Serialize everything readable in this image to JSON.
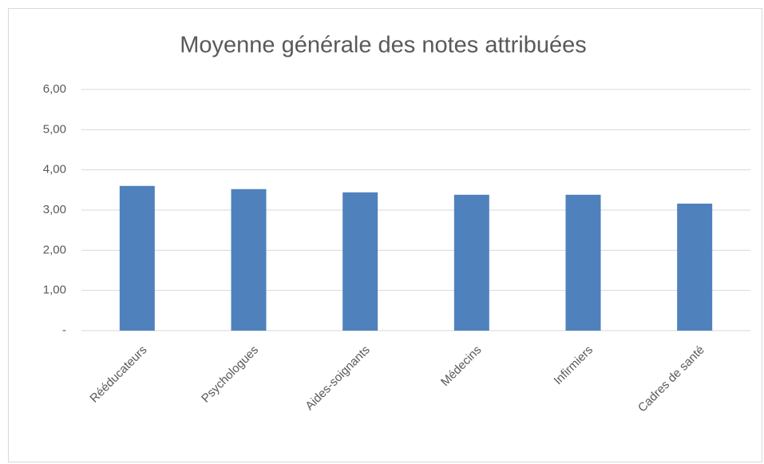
{
  "chart_data": {
    "type": "bar",
    "title": "Moyenne générale des notes attribuées",
    "categories": [
      "Rééducateurs",
      "Psychologues",
      "Aides-soignants",
      "Médecins",
      "Infirmiers",
      "Cadres de santé"
    ],
    "values": [
      3.6,
      3.52,
      3.44,
      3.38,
      3.38,
      3.16
    ],
    "color": "#4f81bd",
    "ylim": [
      0,
      6
    ],
    "yticks": [
      {
        "value": 0,
        "label": "-"
      },
      {
        "value": 1,
        "label": "1,00"
      },
      {
        "value": 2,
        "label": "2,00"
      },
      {
        "value": 3,
        "label": "3,00"
      },
      {
        "value": 4,
        "label": "4,00"
      },
      {
        "value": 5,
        "label": "5,00"
      },
      {
        "value": 6,
        "label": "6,00"
      }
    ],
    "grid": true
  }
}
